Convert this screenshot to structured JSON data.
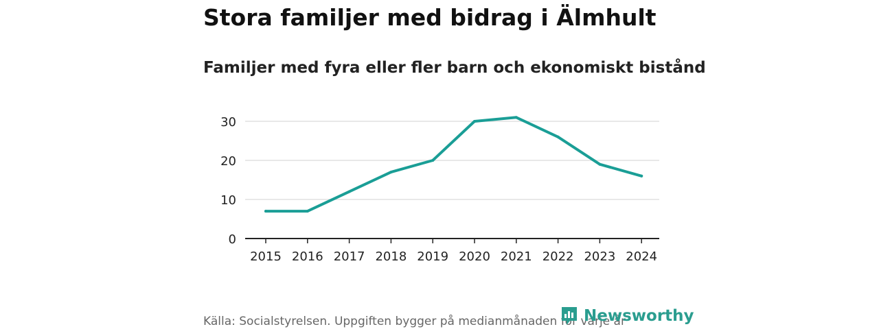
{
  "header": {
    "title": "Stora familjer med bidrag i Älmhult",
    "subtitle": "Familjer med fyra eller fler barn och ekonomiskt bistånd"
  },
  "footer": {
    "source": "Källa: Socialstyrelsen. Uppgiften bygger på medianmånaden för varje år",
    "brand": "Newsworthy",
    "brand_icon": "newsworthy-logo-icon"
  },
  "colors": {
    "line": "#1a9e96",
    "grid": "#d9d9d9",
    "axis": "#222222",
    "brand": "#2a9d8f"
  },
  "chart_data": {
    "type": "line",
    "title": "Stora familjer med bidrag i Älmhult",
    "subtitle": "Familjer med fyra eller fler barn och ekonomiskt bistånd",
    "xlabel": "",
    "ylabel": "",
    "categories": [
      "2015",
      "2016",
      "2017",
      "2018",
      "2019",
      "2020",
      "2021",
      "2022",
      "2023",
      "2024"
    ],
    "series": [
      {
        "name": "Familjer med fyra eller fler barn och ekonomiskt bistånd",
        "values": [
          7,
          7,
          12,
          17,
          20,
          30,
          31,
          26,
          19,
          16
        ]
      }
    ],
    "yticks": [
      0,
      10,
      20,
      30
    ],
    "ylim": [
      0,
      34
    ],
    "grid": true,
    "legend": "none"
  }
}
